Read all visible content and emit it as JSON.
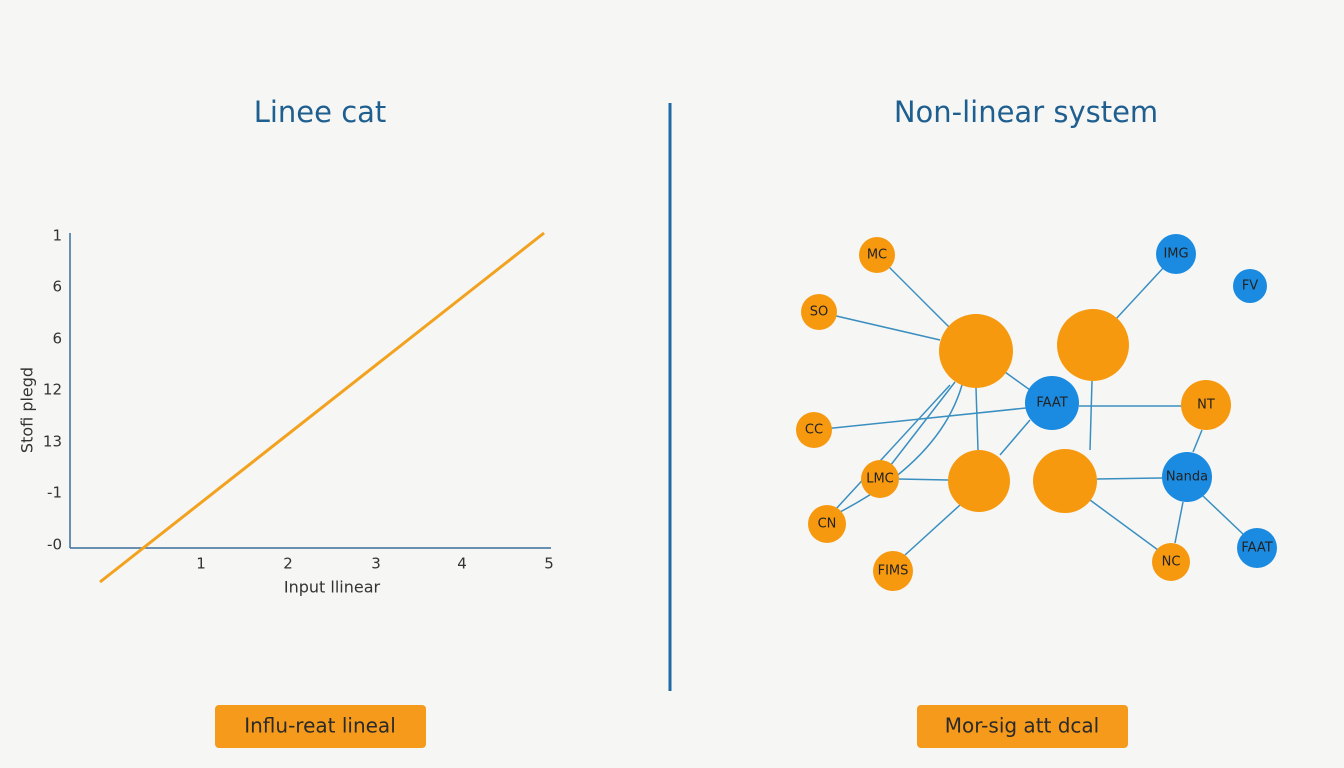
{
  "left": {
    "title": "Linee cat",
    "y_axis_label": "Stofi plegd",
    "y_ticks": [
      "1",
      "6",
      "6",
      "12",
      "13",
      "-1",
      "-0"
    ],
    "x_ticks": [
      "1",
      "2",
      "3",
      "4",
      "5"
    ],
    "x_axis_label": "Input llinear",
    "button": "Influ-reat lineal"
  },
  "right": {
    "title": "Non-linear system",
    "nodes": [
      {
        "label": "MC"
      },
      {
        "label": "SO"
      },
      {
        "label": "CC"
      },
      {
        "label": "LMC"
      },
      {
        "label": "CN"
      },
      {
        "label": "FIMS"
      },
      {
        "label": "IMG"
      },
      {
        "label": "FV"
      },
      {
        "label": "FAAT"
      },
      {
        "label": "NT"
      },
      {
        "label": "Nanda"
      },
      {
        "label": "NC"
      },
      {
        "label": "FAAT"
      }
    ],
    "button": "Mor-sig att dcal"
  }
}
